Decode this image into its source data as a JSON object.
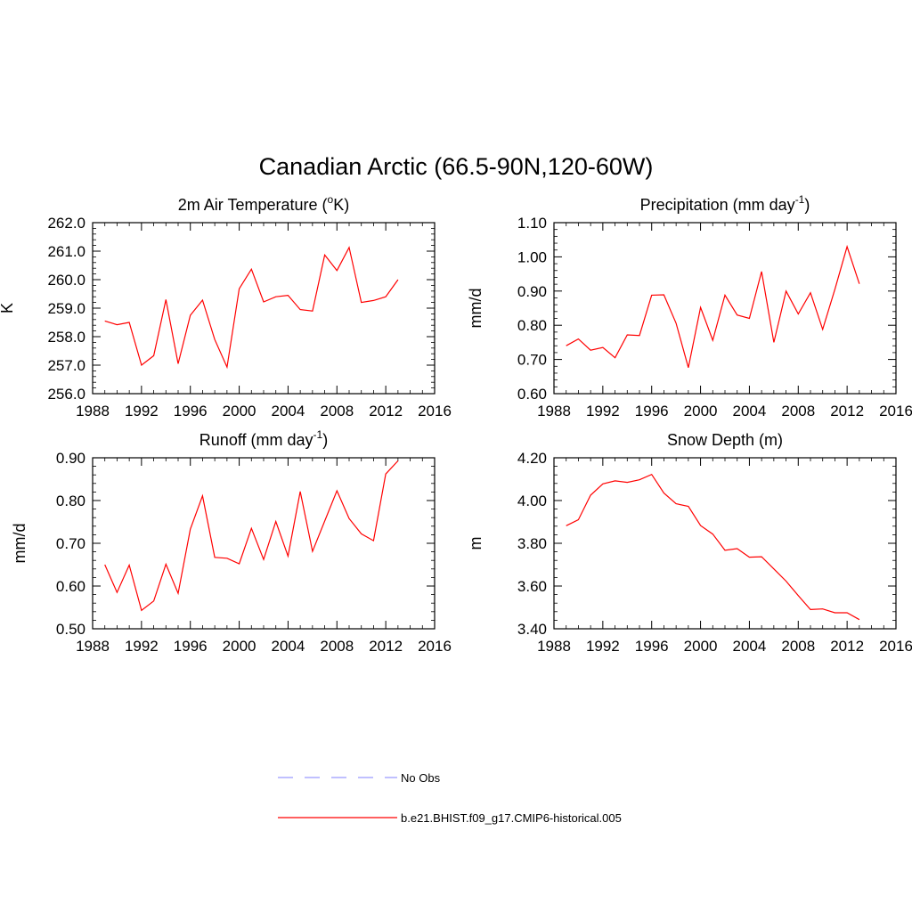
{
  "figure": {
    "title": "Canadian Arctic (66.5-90N,120-60W)"
  },
  "legend": {
    "items": [
      {
        "label": "No Obs",
        "color": "#9a9aff",
        "style": "dashed"
      },
      {
        "label": "b.e21.BHIST.f09_g17.CMIP6-historical.005",
        "color": "#ff0000",
        "style": "solid"
      }
    ]
  },
  "chart_data": [
    {
      "type": "line",
      "title": "2m Air Temperature (",
      "title_sup": "o",
      "title_tail": "K)",
      "xlabel": "",
      "ylabel": "K",
      "xlim": [
        1988,
        2016
      ],
      "ylim": [
        256.0,
        262.0
      ],
      "xticks": [
        1988,
        1992,
        1996,
        2000,
        2004,
        2008,
        2012,
        2016
      ],
      "xtick_labels": [
        "1988",
        "1992",
        "1996",
        "2000",
        "2004",
        "2008",
        "2012",
        "2016"
      ],
      "yticks": [
        256,
        257,
        258,
        259,
        260,
        261,
        262
      ],
      "ytick_labels": [
        "256.0",
        "257.0",
        "258.0",
        "259.0",
        "260.0",
        "261.0",
        "262.0"
      ],
      "series": [
        {
          "name": "b.e21.BHIST.f09_g17.CMIP6-historical.005",
          "color": "#ff0000",
          "x": [
            1989,
            1990,
            1991,
            1992,
            1993,
            1994,
            1995,
            1996,
            1997,
            1998,
            1999,
            2000,
            2001,
            2002,
            2003,
            2004,
            2005,
            2006,
            2007,
            2008,
            2009,
            2010,
            2011,
            2012,
            2013
          ],
          "values": [
            258.55,
            258.42,
            258.5,
            257.0,
            257.33,
            259.3,
            257.05,
            258.75,
            259.28,
            257.9,
            256.93,
            259.68,
            260.37,
            259.22,
            259.4,
            259.45,
            258.95,
            258.9,
            260.87,
            260.32,
            261.13,
            259.2,
            259.27,
            259.4,
            260.0
          ]
        }
      ]
    },
    {
      "type": "line",
      "title": "Precipitation (mm day",
      "title_sup": "-1",
      "title_tail": ")",
      "xlabel": "",
      "ylabel": "mm/d",
      "xlim": [
        1988,
        2016
      ],
      "ylim": [
        0.6,
        1.1
      ],
      "xticks": [
        1988,
        1992,
        1996,
        2000,
        2004,
        2008,
        2012,
        2016
      ],
      "xtick_labels": [
        "1988",
        "1992",
        "1996",
        "2000",
        "2004",
        "2008",
        "2012",
        "2016"
      ],
      "yticks": [
        0.6,
        0.7,
        0.8,
        0.9,
        1.0,
        1.1
      ],
      "ytick_labels": [
        "0.60",
        "0.70",
        "0.80",
        "0.90",
        "1.00",
        "1.10"
      ],
      "series": [
        {
          "name": "b.e21.BHIST.f09_g17.CMIP6-historical.005",
          "color": "#ff0000",
          "x": [
            1989,
            1990,
            1991,
            1992,
            1993,
            1994,
            1995,
            1996,
            1997,
            1998,
            1999,
            2000,
            2001,
            2002,
            2003,
            2004,
            2005,
            2006,
            2007,
            2008,
            2009,
            2010,
            2011,
            2012,
            2013
          ],
          "values": [
            0.74,
            0.76,
            0.727,
            0.735,
            0.705,
            0.772,
            0.77,
            0.888,
            0.889,
            0.806,
            0.676,
            0.852,
            0.756,
            0.888,
            0.83,
            0.82,
            0.957,
            0.75,
            0.9,
            0.833,
            0.895,
            0.788,
            0.905,
            1.03,
            0.921
          ]
        }
      ]
    },
    {
      "type": "line",
      "title": "Runoff (mm day",
      "title_sup": "-1",
      "title_tail": ")",
      "xlabel": "",
      "ylabel": "mm/d",
      "xlim": [
        1988,
        2016
      ],
      "ylim": [
        0.5,
        0.9
      ],
      "xticks": [
        1988,
        1992,
        1996,
        2000,
        2004,
        2008,
        2012,
        2016
      ],
      "xtick_labels": [
        "1988",
        "1992",
        "1996",
        "2000",
        "2004",
        "2008",
        "2012",
        "2016"
      ],
      "yticks": [
        0.5,
        0.6,
        0.7,
        0.8,
        0.9
      ],
      "ytick_labels": [
        "0.50",
        "0.60",
        "0.70",
        "0.80",
        "0.90"
      ],
      "series": [
        {
          "name": "b.e21.BHIST.f09_g17.CMIP6-historical.005",
          "color": "#ff0000",
          "x": [
            1989,
            1990,
            1991,
            1992,
            1993,
            1994,
            1995,
            1996,
            1997,
            1998,
            1999,
            2000,
            2001,
            2002,
            2003,
            2004,
            2005,
            2006,
            2007,
            2008,
            2009,
            2010,
            2011,
            2012,
            2013
          ],
          "values": [
            0.65,
            0.585,
            0.649,
            0.543,
            0.565,
            0.651,
            0.583,
            0.733,
            0.811,
            0.667,
            0.665,
            0.652,
            0.735,
            0.662,
            0.751,
            0.67,
            0.821,
            0.681,
            0.752,
            0.823,
            0.758,
            0.722,
            0.706,
            0.862,
            0.893
          ]
        }
      ]
    },
    {
      "type": "line",
      "title": "Snow Depth (m)",
      "title_sup": "",
      "title_tail": "",
      "xlabel": "",
      "ylabel": "m",
      "xlim": [
        1988,
        2016
      ],
      "ylim": [
        3.4,
        4.2
      ],
      "xticks": [
        1988,
        1992,
        1996,
        2000,
        2004,
        2008,
        2012,
        2016
      ],
      "xtick_labels": [
        "1988",
        "1992",
        "1996",
        "2000",
        "2004",
        "2008",
        "2012",
        "2016"
      ],
      "yticks": [
        3.4,
        3.6,
        3.8,
        4.0,
        4.2
      ],
      "ytick_labels": [
        "3.40",
        "3.60",
        "3.80",
        "4.00",
        "4.20"
      ],
      "series": [
        {
          "name": "b.e21.BHIST.f09_g17.CMIP6-historical.005",
          "color": "#ff0000",
          "x": [
            1989,
            1990,
            1991,
            1992,
            1993,
            1994,
            1995,
            1996,
            1997,
            1998,
            1999,
            2000,
            2001,
            2002,
            2003,
            2004,
            2005,
            2006,
            2007,
            2008,
            2009,
            2010,
            2011,
            2012,
            2013
          ],
          "values": [
            3.882,
            3.91,
            4.025,
            4.078,
            4.092,
            4.085,
            4.097,
            4.122,
            4.035,
            3.985,
            3.973,
            3.883,
            3.843,
            3.767,
            3.775,
            3.735,
            3.737,
            3.68,
            3.623,
            3.555,
            3.49,
            3.493,
            3.475,
            3.475,
            3.443
          ]
        }
      ]
    }
  ]
}
